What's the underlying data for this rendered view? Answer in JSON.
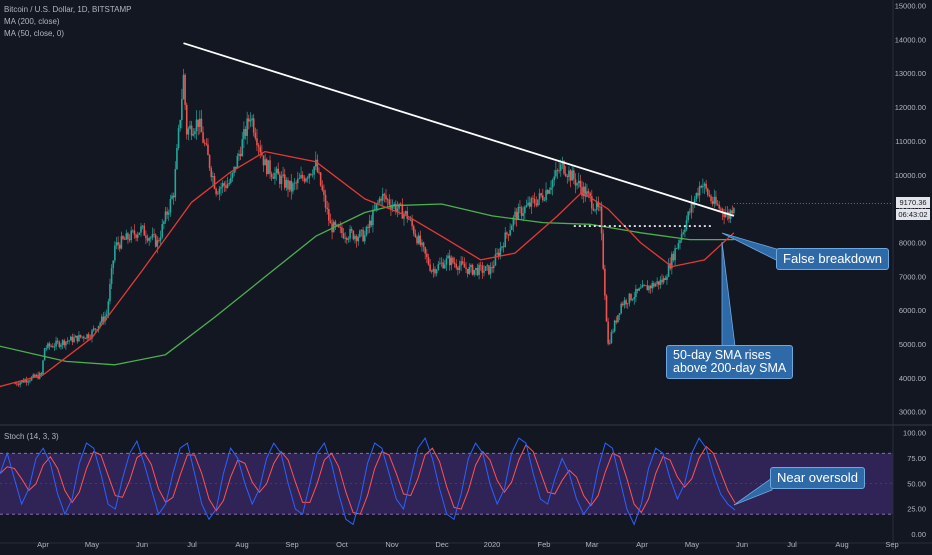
{
  "legend": {
    "title": "Bitcoin / U.S. Dollar, 1D, BITSTAMP",
    "ma200": "MA (200, close)",
    "ma50": "MA (50, close, 0)",
    "stoch": "Stoch (14, 3, 3)"
  },
  "price_tags": {
    "last_price": "9170.36",
    "countdown": "06:43:02"
  },
  "annotations": {
    "false_breakdown": "False breakdown",
    "sma_cross_line1": "50-day SMA rises",
    "sma_cross_line2": "above 200-day SMA",
    "near_oversold": "Near oversold"
  },
  "colors": {
    "background": "#131722",
    "candle_up": "#26a69a",
    "candle_down": "#ef5350",
    "ma200": "#4caf50",
    "ma50": "#e53935",
    "trendline": "#ffffff",
    "stoch_k": "#2962ff",
    "stoch_d": "#ff5252",
    "stoch_band": "#673ab7",
    "callout": "#2e6aa8"
  },
  "chart_data": [
    {
      "type": "candlestick",
      "title": "Bitcoin / U.S. Dollar, 1D, BITSTAMP",
      "x_ticks": [
        "Apr",
        "May",
        "Jun",
        "Jul",
        "Aug",
        "Sep",
        "Oct",
        "Nov",
        "Dec",
        "2020",
        "Feb",
        "Mar",
        "Apr",
        "May",
        "Jun",
        "Jul",
        "Aug",
        "Sep"
      ],
      "y_ticks": [
        "15000.00",
        "14000.00",
        "13000.00",
        "12000.00",
        "11000.00",
        "10000.00",
        "9000.00",
        "8000.00",
        "7000.00",
        "6000.00",
        "5000.00",
        "4000.00",
        "3000.00"
      ],
      "ylim": [
        2600,
        15000
      ],
      "price_path": [
        [
          "2019-03-15",
          3850
        ],
        [
          "2019-03-31",
          4100
        ],
        [
          "2019-04-02",
          4900
        ],
        [
          "2019-04-15",
          5100
        ],
        [
          "2019-04-30",
          5300
        ],
        [
          "2019-05-10",
          5900
        ],
        [
          "2019-05-15",
          7900
        ],
        [
          "2019-05-31",
          8400
        ],
        [
          "2019-06-10",
          8000
        ],
        [
          "2019-06-20",
          9500
        ],
        [
          "2019-06-26",
          12900
        ],
        [
          "2019-06-28",
          11300
        ],
        [
          "2019-07-05",
          11600
        ],
        [
          "2019-07-16",
          9600
        ],
        [
          "2019-07-25",
          9800
        ],
        [
          "2019-08-06",
          11800
        ],
        [
          "2019-08-15",
          10300
        ],
        [
          "2019-08-31",
          9600
        ],
        [
          "2019-09-15",
          10300
        ],
        [
          "2019-09-24",
          8500
        ],
        [
          "2019-10-01",
          8300
        ],
        [
          "2019-10-15",
          8200
        ],
        [
          "2019-10-25",
          9400
        ],
        [
          "2019-11-10",
          8800
        ],
        [
          "2019-11-25",
          7200
        ],
        [
          "2019-12-05",
          7500
        ],
        [
          "2019-12-18",
          7200
        ],
        [
          "2019-12-31",
          7200
        ],
        [
          "2020-01-15",
          8800
        ],
        [
          "2020-02-01",
          9400
        ],
        [
          "2020-02-13",
          10300
        ],
        [
          "2020-02-25",
          9600
        ],
        [
          "2020-03-07",
          8900
        ],
        [
          "2020-03-12",
          5000
        ],
        [
          "2020-03-20",
          6200
        ],
        [
          "2020-04-01",
          6600
        ],
        [
          "2020-04-15",
          6900
        ],
        [
          "2020-04-30",
          8800
        ],
        [
          "2020-05-08",
          9800
        ],
        [
          "2020-05-15",
          9200
        ],
        [
          "2020-05-25",
          8800
        ],
        [
          "2020-05-28",
          9170
        ]
      ],
      "ma200_path": [
        [
          "2019-03-01",
          5000
        ],
        [
          "2019-04-15",
          4500
        ],
        [
          "2019-05-15",
          4400
        ],
        [
          "2019-06-15",
          4700
        ],
        [
          "2019-07-15",
          5800
        ],
        [
          "2019-08-15",
          7000
        ],
        [
          "2019-09-15",
          8200
        ],
        [
          "2019-10-15",
          8900
        ],
        [
          "2019-11-01",
          9100
        ],
        [
          "2019-12-01",
          9150
        ],
        [
          "2020-01-01",
          8800
        ],
        [
          "2020-02-01",
          8600
        ],
        [
          "2020-03-01",
          8550
        ],
        [
          "2020-04-01",
          8300
        ],
        [
          "2020-05-01",
          8100
        ],
        [
          "2020-05-28",
          8100
        ]
      ],
      "ma50_path": [
        [
          "2019-03-01",
          3700
        ],
        [
          "2019-04-01",
          4100
        ],
        [
          "2019-05-01",
          5200
        ],
        [
          "2019-06-01",
          7200
        ],
        [
          "2019-07-01",
          9200
        ],
        [
          "2019-07-25",
          10100
        ],
        [
          "2019-08-15",
          10700
        ],
        [
          "2019-09-15",
          10400
        ],
        [
          "2019-10-15",
          9300
        ],
        [
          "2019-11-10",
          8800
        ],
        [
          "2019-12-01",
          8200
        ],
        [
          "2019-12-25",
          7500
        ],
        [
          "2020-01-15",
          7700
        ],
        [
          "2020-02-10",
          8800
        ],
        [
          "2020-02-25",
          9500
        ],
        [
          "2020-03-12",
          9000
        ],
        [
          "2020-04-01",
          8000
        ],
        [
          "2020-04-20",
          7300
        ],
        [
          "2020-05-10",
          7500
        ],
        [
          "2020-05-28",
          8300
        ]
      ],
      "trendline": [
        [
          "2019-06-26",
          13900
        ],
        [
          "2020-05-28",
          8800
        ]
      ],
      "support_line": {
        "from": "2020-02-20",
        "to": "2020-05-15",
        "value": 8500
      }
    },
    {
      "type": "line",
      "title": "Stoch (14, 3, 3)",
      "y_ticks": [
        "100.00",
        "75.00",
        "50.00",
        "25.00",
        "0.00"
      ],
      "ylim": [
        0,
        100
      ],
      "band": [
        20,
        80
      ],
      "series": [
        {
          "values": [
            60,
            80,
            55,
            30,
            45,
            75,
            85,
            70,
            40,
            20,
            35,
            70,
            90,
            85,
            60,
            30,
            25,
            55,
            80,
            92,
            70,
            45,
            20,
            30,
            60,
            85,
            90,
            60,
            30,
            15,
            25,
            60,
            85,
            75,
            50,
            30,
            45,
            75,
            90,
            80,
            50,
            25,
            20,
            50,
            80,
            90,
            70,
            40,
            15,
            10,
            35,
            70,
            90,
            85,
            60,
            35,
            25,
            55,
            85,
            95,
            75,
            45,
            20,
            15,
            40,
            75,
            90,
            80,
            50,
            30,
            45,
            80,
            95,
            90,
            60,
            35,
            30,
            55,
            75,
            60,
            35,
            20,
            30,
            65,
            90,
            85,
            55,
            25,
            10,
            30,
            65,
            85,
            80,
            55,
            35,
            50,
            80,
            95,
            85,
            60,
            40,
            30,
            24
          ]
        }
      ]
    }
  ]
}
